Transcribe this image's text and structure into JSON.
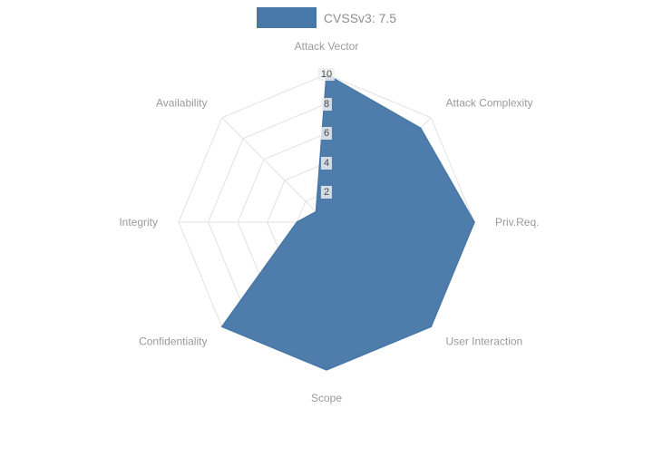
{
  "legend": {
    "label": "CVSSv3: 7.5"
  },
  "chart_data": {
    "type": "radar",
    "title": "CVSSv3: 7.5",
    "categories": [
      "Attack Vector",
      "Attack Complexity",
      "Priv.Req.",
      "User Interaction",
      "Scope",
      "Confidentiality",
      "Integrity",
      "Availability"
    ],
    "series": [
      {
        "name": "CVSSv3: 7.5",
        "values": [
          10,
          9,
          10,
          10,
          10,
          10,
          2,
          1
        ]
      }
    ],
    "rlim": [
      0,
      10
    ],
    "rticks": [
      2,
      4,
      6,
      8,
      10
    ],
    "colors": {
      "fill": "#4878a8",
      "grid": "#e2e2e2",
      "axis_label": "#9a9a9a",
      "tick_text": "#4a4a4a"
    },
    "legend_position": "top",
    "grid": true
  }
}
